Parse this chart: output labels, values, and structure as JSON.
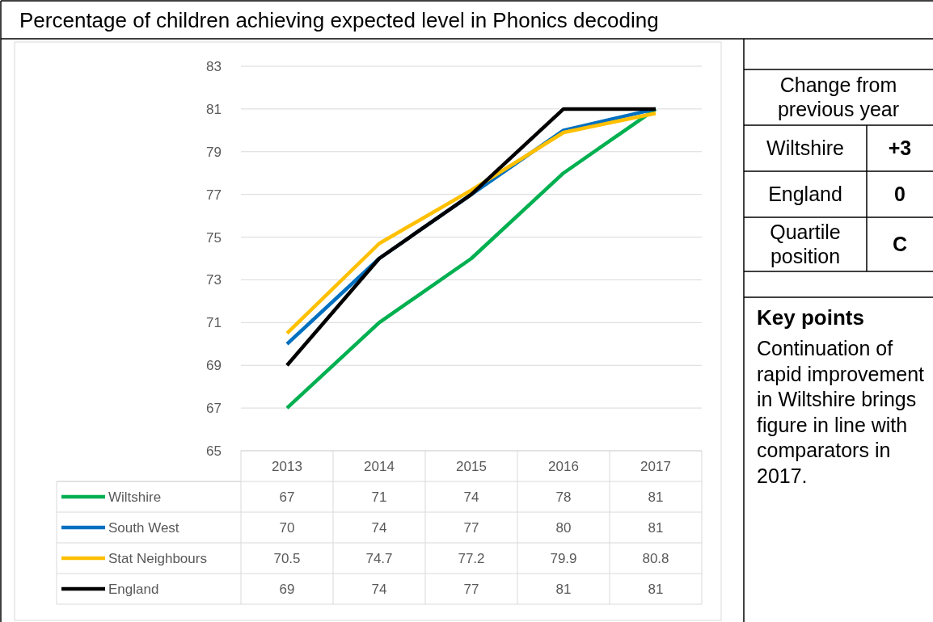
{
  "chart_data": [
    {
      "type": "line",
      "title": "Percentage of children achieving expected level in Phonics decoding",
      "categories": [
        "2013",
        "2014",
        "2015",
        "2016",
        "2017"
      ],
      "series": [
        {
          "name": "Wiltshire",
          "color": "#00b050",
          "values": [
            67,
            71,
            74,
            78,
            81
          ]
        },
        {
          "name": "South West",
          "color": "#0070c0",
          "values": [
            70,
            74,
            77,
            80,
            81
          ]
        },
        {
          "name": "Stat Neighbours",
          "color": "#ffc000",
          "values": [
            70.5,
            74.7,
            77.2,
            79.9,
            80.8
          ]
        },
        {
          "name": "England",
          "color": "#000000",
          "values": [
            69,
            74,
            77,
            81,
            81
          ]
        }
      ],
      "ylim": [
        65,
        83
      ],
      "yticks": [
        65,
        67,
        69,
        71,
        73,
        75,
        77,
        79,
        81,
        83
      ],
      "grid": "y",
      "data_labels": true,
      "legend": "bottom",
      "marker": "none"
    },
    {
      "type": "other",
      "annotations": [
        "Change from previous year",
        "Wiltshire",
        "+3",
        "England",
        "0",
        "Quartile position",
        "C",
        "Key points",
        "Continuation of rapid improvement in Wiltshire brings figure in line with comparators in 2017."
      ]
    }
  ]
}
